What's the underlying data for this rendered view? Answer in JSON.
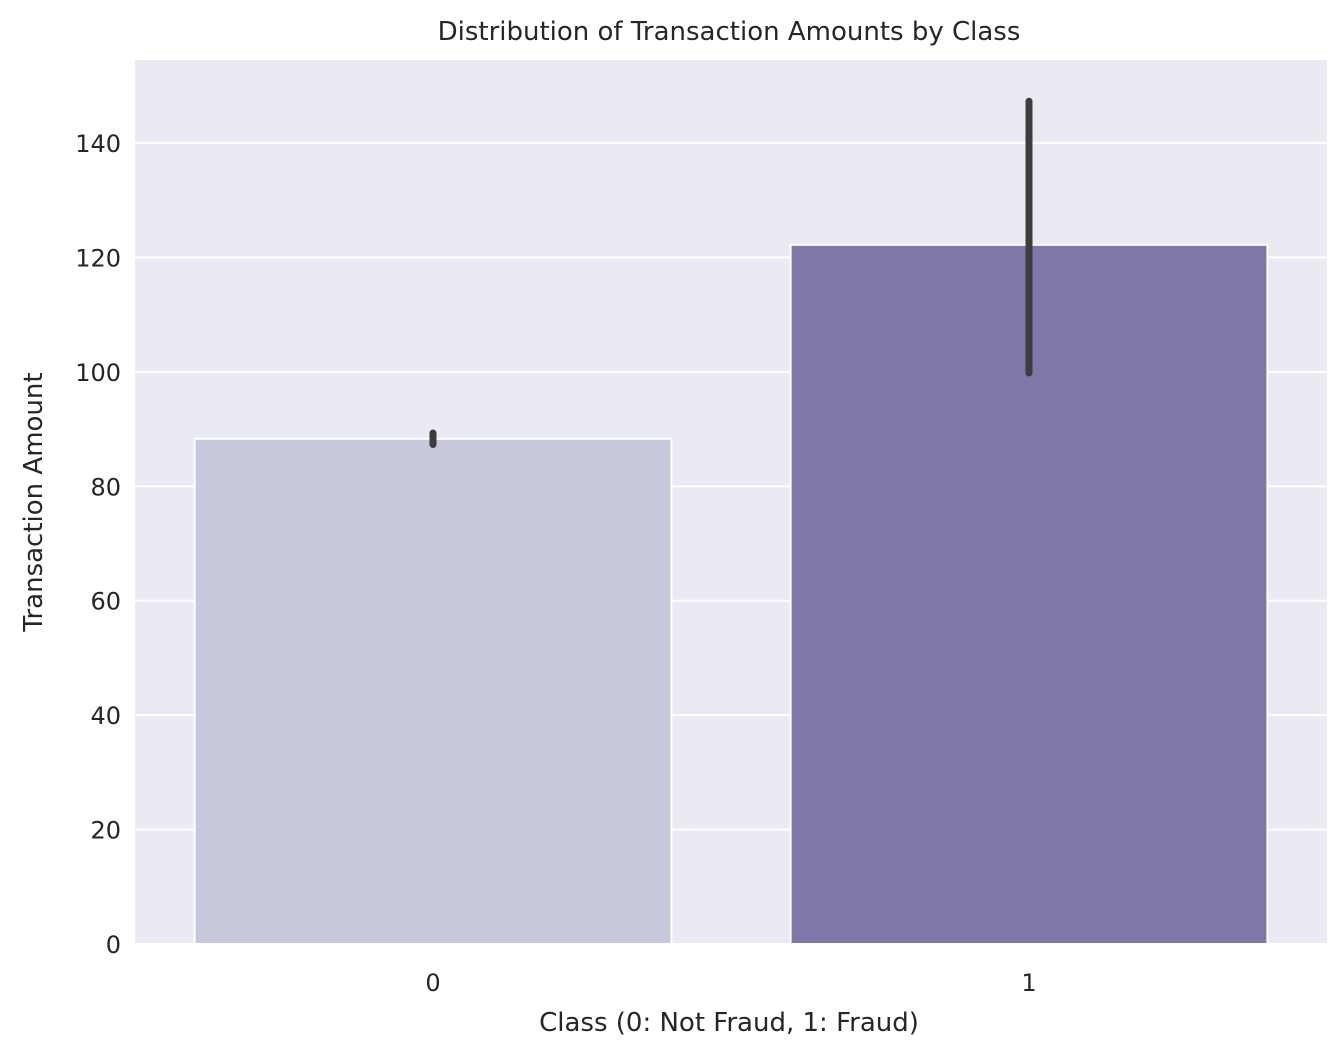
{
  "chart_data": {
    "type": "bar",
    "title": "Distribution of Transaction Amounts by Class",
    "xlabel": "Class (0: Not Fraud, 1: Fraud)",
    "ylabel": "Transaction Amount",
    "categories": [
      "0",
      "1"
    ],
    "values": [
      88.3,
      122.2
    ],
    "error_bars": [
      {
        "low": 87.3,
        "high": 89.3
      },
      {
        "low": 99.8,
        "high": 147.3
      }
    ],
    "ylim": [
      0,
      154.5
    ],
    "yticks": [
      0,
      20,
      40,
      60,
      80,
      100,
      120,
      140
    ],
    "grid": true,
    "bar_colors": [
      "#c8c8dc",
      "#8077a8"
    ],
    "error_bar_color": "#3d3d3d",
    "background_color": "#eaeaf2",
    "grid_color": "#ffffff"
  }
}
